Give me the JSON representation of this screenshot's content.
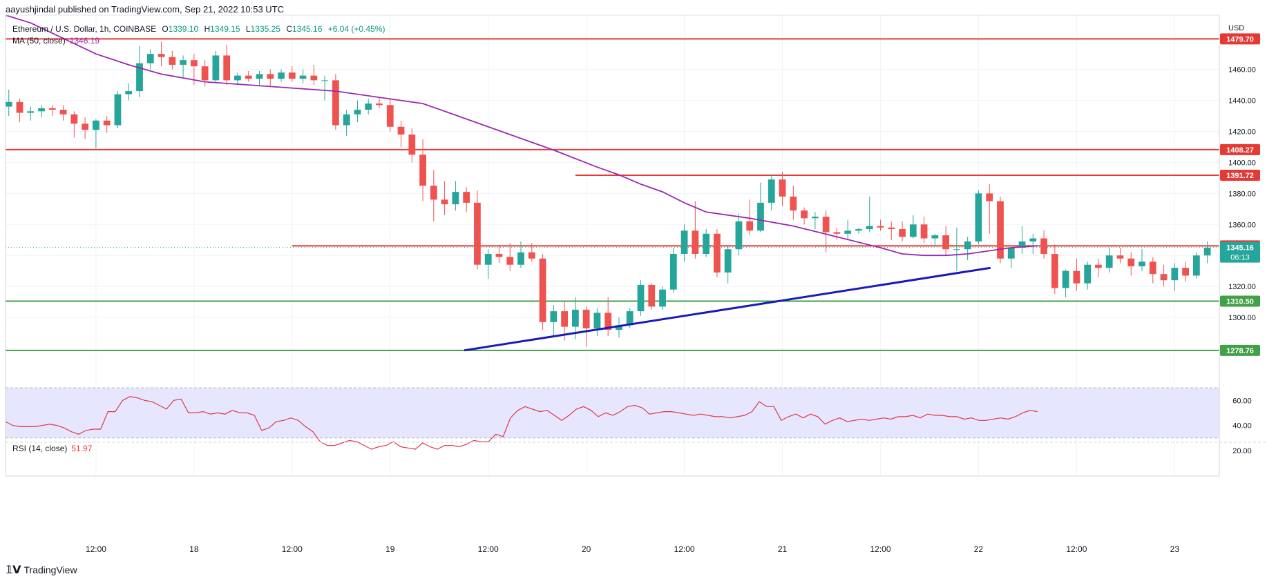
{
  "header": {
    "published": "aayushjindal published on TradingView.com, Sep 21, 2022 10:53 UTC"
  },
  "legend": {
    "symbol": "Ethereum / U.S. Dollar, 1h, COINBASE",
    "o_label": "O",
    "o": "1339.10",
    "h_label": "H",
    "h": "1349.15",
    "l_label": "L",
    "l": "1335.25",
    "c_label": "C",
    "c": "1345.16",
    "change": "+6.04 (+0.45%)",
    "ma_label": "MA (50, close)",
    "ma_value": "1346.19",
    "rsi_label": "RSI (14, close)",
    "rsi_value": "51.97"
  },
  "footer": {
    "brand": "TradingView",
    "logo_icon": "tradingview-logo-icon"
  },
  "colors": {
    "up": "#26a69a",
    "down": "#ef5350",
    "ma": "#9c27b0",
    "rsi": "#e0384a",
    "resistance": "#e53935",
    "support": "#43a047",
    "trendline": "#1a1ab8",
    "rsi_band": "#e6e6ff",
    "grid": "#f0f3fa"
  },
  "chart_data": {
    "type": "candlestick",
    "symbol": "Ethereum / U.S. Dollar",
    "interval": "1h",
    "exchange": "COINBASE",
    "currency": "USD",
    "price_axis": {
      "label": "USD",
      "ticks": [
        "1300.00",
        "1320.00",
        "1340.00",
        "1360.00",
        "1380.00",
        "1400.00",
        "1420.00",
        "1440.00",
        "1460.00"
      ],
      "range": [
        1268,
        1495
      ]
    },
    "time_axis": {
      "ticks": [
        "12:00",
        "18",
        "12:00",
        "19",
        "12:00",
        "20",
        "12:00",
        "21",
        "12:00",
        "22",
        "12:00",
        "23"
      ],
      "range": [
        -8.3,
        103.1
      ]
    },
    "horizontal_levels": [
      {
        "value": 1479.7,
        "label": "1479.70",
        "kind": "resistance"
      },
      {
        "value": 1408.27,
        "label": "1408.27",
        "kind": "resistance"
      },
      {
        "value": 1391.72,
        "label": "1391.72",
        "kind": "resistance",
        "x_start": 44
      },
      {
        "value": 1346.17,
        "label": "1346.17",
        "kind": "resistance",
        "x_start": 18
      },
      {
        "value": 1310.5,
        "label": "1310.50",
        "kind": "support"
      },
      {
        "value": 1278.76,
        "label": "1278.76",
        "kind": "support"
      }
    ],
    "last_price": {
      "value": 1345.16,
      "label": "1345.16",
      "countdown": "06:13"
    },
    "trendline": {
      "x1": 33.8,
      "y1": 1278.76,
      "x2": 82.1,
      "y2": 1332.0
    },
    "candles": [
      [
        1436,
        1447,
        1430,
        1439
      ],
      [
        1439,
        1441,
        1426,
        1432
      ],
      [
        1432,
        1436,
        1427,
        1433
      ],
      [
        1433,
        1437,
        1429,
        1435
      ],
      [
        1435,
        1437,
        1430,
        1434
      ],
      [
        1434,
        1437,
        1427,
        1431
      ],
      [
        1431,
        1433,
        1416,
        1425
      ],
      [
        1425,
        1429,
        1415,
        1421
      ],
      [
        1421,
        1428,
        1409,
        1427
      ],
      [
        1427,
        1430,
        1419,
        1424
      ],
      [
        1424,
        1446,
        1422,
        1444
      ],
      [
        1444,
        1451,
        1440,
        1446
      ],
      [
        1446,
        1475,
        1442,
        1464
      ],
      [
        1464,
        1473,
        1460,
        1470
      ],
      [
        1470,
        1478,
        1462,
        1468
      ],
      [
        1468,
        1472,
        1460,
        1463
      ],
      [
        1463,
        1469,
        1455,
        1466
      ],
      [
        1466,
        1470,
        1450,
        1462
      ],
      [
        1462,
        1466,
        1449,
        1453
      ],
      [
        1453,
        1472,
        1451,
        1469
      ],
      [
        1469,
        1476,
        1450,
        1453
      ],
      [
        1453,
        1458,
        1450,
        1456
      ],
      [
        1456,
        1459,
        1452,
        1454
      ],
      [
        1454,
        1459,
        1450,
        1457
      ],
      [
        1457,
        1460,
        1449,
        1454
      ],
      [
        1454,
        1460,
        1452,
        1458
      ],
      [
        1458,
        1462,
        1452,
        1454
      ],
      [
        1454,
        1460,
        1451,
        1456
      ],
      [
        1456,
        1463,
        1450,
        1453
      ],
      [
        1453,
        1456,
        1440,
        1453
      ],
      [
        1453,
        1457,
        1421,
        1424
      ],
      [
        1424,
        1434,
        1417,
        1431
      ],
      [
        1431,
        1440,
        1426,
        1434
      ],
      [
        1434,
        1441,
        1431,
        1438
      ],
      [
        1438,
        1442,
        1435,
        1437
      ],
      [
        1437,
        1441,
        1420,
        1423
      ],
      [
        1423,
        1427,
        1410,
        1418
      ],
      [
        1418,
        1422,
        1400,
        1405
      ],
      [
        1405,
        1415,
        1375,
        1385
      ],
      [
        1385,
        1395,
        1362,
        1376
      ],
      [
        1376,
        1388,
        1366,
        1373
      ],
      [
        1373,
        1388,
        1369,
        1381
      ],
      [
        1381,
        1384,
        1368,
        1374
      ],
      [
        1374,
        1382,
        1331,
        1334
      ],
      [
        1334,
        1344,
        1325,
        1341
      ],
      [
        1341,
        1347,
        1335,
        1339
      ],
      [
        1339,
        1348,
        1330,
        1334
      ],
      [
        1334,
        1349,
        1332,
        1342
      ],
      [
        1342,
        1348,
        1336,
        1338
      ],
      [
        1338,
        1341,
        1292,
        1297
      ],
      [
        1297,
        1308,
        1288,
        1304
      ],
      [
        1304,
        1310,
        1285,
        1294
      ],
      [
        1294,
        1313,
        1286,
        1305
      ],
      [
        1305,
        1307,
        1281,
        1293
      ],
      [
        1293,
        1306,
        1288,
        1303
      ],
      [
        1303,
        1313,
        1288,
        1292
      ],
      [
        1292,
        1300,
        1287,
        1295
      ],
      [
        1295,
        1306,
        1293,
        1304
      ],
      [
        1304,
        1324,
        1301,
        1321
      ],
      [
        1321,
        1322,
        1305,
        1307
      ],
      [
        1307,
        1320,
        1305,
        1318
      ],
      [
        1318,
        1345,
        1316,
        1341
      ],
      [
        1341,
        1360,
        1336,
        1356
      ],
      [
        1356,
        1375,
        1338,
        1341
      ],
      [
        1341,
        1357,
        1339,
        1354
      ],
      [
        1354,
        1357,
        1326,
        1329
      ],
      [
        1329,
        1346,
        1322,
        1344
      ],
      [
        1344,
        1367,
        1340,
        1362
      ],
      [
        1362,
        1376,
        1353,
        1356
      ],
      [
        1356,
        1387,
        1355,
        1374
      ],
      [
        1374,
        1392,
        1369,
        1389
      ],
      [
        1389,
        1394,
        1372,
        1378
      ],
      [
        1378,
        1385,
        1363,
        1369
      ],
      [
        1369,
        1371,
        1360,
        1364
      ],
      [
        1364,
        1368,
        1357,
        1365
      ],
      [
        1365,
        1369,
        1342,
        1355
      ],
      [
        1355,
        1358,
        1350,
        1354
      ],
      [
        1354,
        1363,
        1350,
        1356
      ],
      [
        1356,
        1358,
        1354,
        1357
      ],
      [
        1357,
        1378,
        1355,
        1359
      ],
      [
        1359,
        1363,
        1356,
        1358
      ],
      [
        1358,
        1362,
        1350,
        1357
      ],
      [
        1357,
        1362,
        1349,
        1352
      ],
      [
        1352,
        1366,
        1351,
        1360
      ],
      [
        1360,
        1365,
        1348,
        1351
      ],
      [
        1351,
        1354,
        1346,
        1353
      ],
      [
        1353,
        1359,
        1340,
        1344
      ],
      [
        1344,
        1358,
        1330,
        1344
      ],
      [
        1344,
        1352,
        1337,
        1349
      ],
      [
        1349,
        1382,
        1347,
        1380
      ],
      [
        1380,
        1386,
        1354,
        1375
      ],
      [
        1375,
        1378,
        1335,
        1338
      ],
      [
        1338,
        1345,
        1332,
        1345
      ],
      [
        1345,
        1359,
        1341,
        1349
      ],
      [
        1349,
        1354,
        1341,
        1351
      ],
      [
        1351,
        1356,
        1338,
        1341
      ],
      [
        1341,
        1347,
        1315,
        1319
      ],
      [
        1319,
        1331,
        1313,
        1330
      ],
      [
        1330,
        1338,
        1317,
        1322
      ],
      [
        1322,
        1336,
        1318,
        1334
      ],
      [
        1334,
        1338,
        1326,
        1332
      ],
      [
        1332,
        1345,
        1329,
        1340
      ],
      [
        1340,
        1345,
        1335,
        1338
      ],
      [
        1338,
        1342,
        1327,
        1333
      ],
      [
        1333,
        1344,
        1330,
        1336
      ],
      [
        1336,
        1339,
        1322,
        1328
      ],
      [
        1328,
        1334,
        1320,
        1324
      ],
      [
        1324,
        1335,
        1317,
        1332
      ],
      [
        1332,
        1336,
        1323,
        1327
      ],
      [
        1327,
        1342,
        1325,
        1340
      ],
      [
        1340,
        1349,
        1335,
        1345
      ]
    ],
    "ma": {
      "name": "MA (50, close)",
      "x": [
        -8.3,
        -6,
        -3,
        0,
        3,
        6,
        10,
        14,
        18,
        22,
        26,
        30,
        34,
        38,
        42,
        46,
        48,
        50,
        52,
        54,
        56,
        60,
        64,
        68,
        72,
        74,
        76,
        78,
        80,
        82,
        84,
        86.4
      ],
      "y": [
        1495,
        1490,
        1480,
        1470,
        1463,
        1457,
        1452,
        1450,
        1448,
        1446,
        1442,
        1438,
        1428,
        1418,
        1408,
        1397,
        1392,
        1386,
        1381,
        1374,
        1368,
        1364,
        1359,
        1352,
        1345,
        1341,
        1340,
        1340,
        1341,
        1343,
        1345,
        1346.19
      ]
    },
    "rsi": {
      "name": "RSI (14, close)",
      "value": 51.97,
      "range": [
        15,
        75
      ],
      "band": [
        30,
        70
      ],
      "ticks": [
        "20.00",
        "40.00",
        "60.00"
      ],
      "values": [
        43,
        40,
        39,
        39,
        39,
        40,
        41,
        40,
        38,
        35,
        33,
        36,
        37,
        37,
        51,
        51,
        60,
        63,
        62,
        60,
        59,
        56,
        53,
        60,
        61,
        50,
        50,
        51,
        49,
        50,
        49,
        52,
        50,
        50,
        48,
        36,
        38,
        43,
        44,
        46,
        44,
        39,
        35,
        27,
        24,
        24,
        26,
        28,
        27,
        24,
        21,
        23,
        24,
        27,
        23,
        22,
        21,
        26,
        23,
        21,
        24,
        24,
        23,
        25,
        28,
        27,
        27,
        33,
        31,
        46,
        52,
        55,
        53,
        51,
        52,
        48,
        44,
        48,
        53,
        55,
        52,
        47,
        50,
        48,
        51,
        55,
        56,
        54,
        49,
        50,
        51,
        51,
        50,
        49,
        48,
        49,
        48,
        47,
        47,
        46,
        47,
        48,
        51,
        59,
        55,
        55,
        44,
        47,
        49,
        46,
        49,
        47,
        41,
        44,
        46,
        43,
        44,
        45,
        44,
        45,
        46,
        45,
        47,
        47,
        48,
        46,
        49,
        48,
        48,
        47,
        47,
        45,
        46,
        44,
        44,
        45,
        46,
        45,
        47,
        50,
        52,
        51
      ]
    }
  }
}
